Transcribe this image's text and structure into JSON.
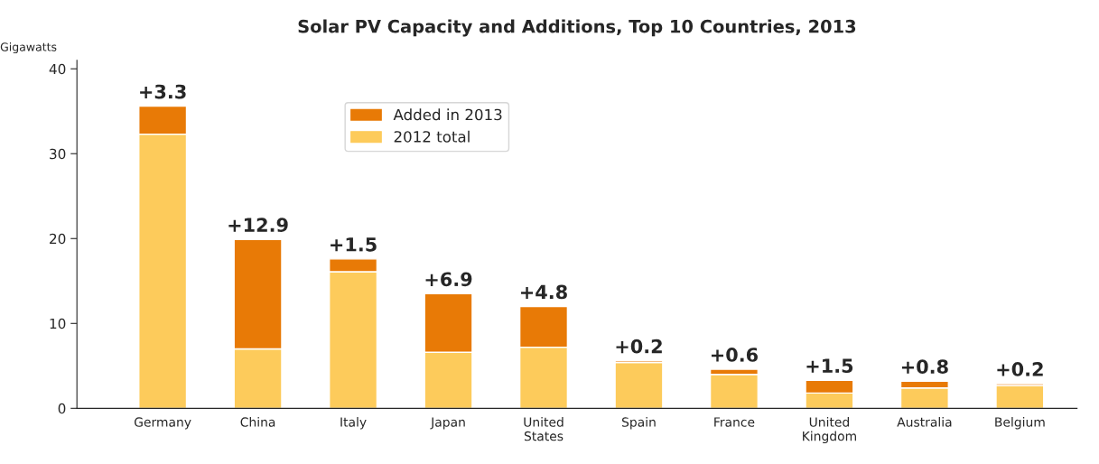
{
  "chart_data": {
    "type": "bar",
    "title": "Solar PV Capacity and Additions, Top 10 Countries, 2013",
    "ylabel": "Gigawatts",
    "categories": [
      "Germany",
      "China",
      "Italy",
      "Japan",
      "United\nStates",
      "Spain",
      "France",
      "United\nKingdom",
      "Australia",
      "Belgium"
    ],
    "stacked": true,
    "series": [
      {
        "name": "2012 total",
        "color": "#fdcb5b",
        "values": [
          32.3,
          7.0,
          16.1,
          6.6,
          7.2,
          5.4,
          4.0,
          1.8,
          2.4,
          2.7
        ]
      },
      {
        "name": "Added in 2013",
        "color": "#e87a06",
        "values": [
          3.3,
          12.9,
          1.5,
          6.9,
          4.8,
          0.2,
          0.6,
          1.5,
          0.8,
          0.2
        ],
        "value_labels": [
          "+3.3",
          "+12.9",
          "+1.5",
          "+6.9",
          "+4.8",
          "+0.2",
          "+0.6",
          "+1.5",
          "+0.8",
          "+0.2"
        ]
      }
    ],
    "ylim": [
      0,
      41
    ],
    "yticks": [
      0,
      10,
      20,
      30,
      40
    ],
    "grid": false,
    "legend": "top"
  }
}
